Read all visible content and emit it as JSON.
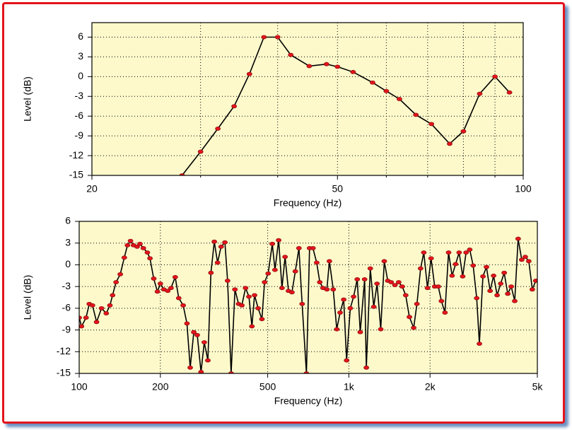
{
  "chart_data": [
    {
      "type": "line",
      "ylabel": "Level (dB)",
      "xlabel": "Frequency (Hz)",
      "log_x": true,
      "grid": true,
      "color": "#000000",
      "marker_color": "#e3141b",
      "xlim": [
        20,
        100
      ],
      "xticks": [
        20,
        50,
        100
      ],
      "xminor": [
        30,
        40,
        60,
        70,
        80,
        90
      ],
      "ylim": [
        -15,
        8.2
      ],
      "yticks": [
        6,
        3,
        0,
        -3,
        -6,
        -9,
        -12,
        -15
      ],
      "x": [
        28,
        30,
        32,
        34,
        36,
        38,
        40,
        42,
        45,
        48,
        50,
        53,
        57,
        60,
        63,
        67,
        71,
        76,
        80,
        85,
        90,
        95
      ],
      "values": [
        -15,
        -11.4,
        -7.9,
        -4.5,
        0.4,
        6,
        6,
        3.3,
        1.6,
        1.9,
        1.5,
        0.7,
        -0.9,
        -2.2,
        -3.4,
        -5.8,
        -7.2,
        -10.2,
        -8.3,
        -2.6,
        0,
        -2.4
      ]
    },
    {
      "type": "line",
      "ylabel": "Level (dB)",
      "xlabel": "Frequency (Hz)",
      "log_x": true,
      "grid": true,
      "color": "#000000",
      "marker_color": "#e3141b",
      "xlim": [
        100,
        5000
      ],
      "xticks": [
        100,
        200,
        500,
        {
          "value": 1000,
          "label": "1k"
        },
        {
          "value": 2000,
          "label": "2k"
        },
        {
          "value": 5000,
          "label": "5k"
        }
      ],
      "ylim": [
        -15,
        6
      ],
      "yticks": [
        6,
        3,
        0,
        -3,
        -6,
        -9,
        -12,
        -15
      ],
      "x": [
        100,
        102,
        106,
        109,
        112,
        116,
        121,
        126,
        130,
        133,
        137,
        142,
        147,
        151,
        155,
        159,
        164,
        168,
        173,
        179,
        183,
        189,
        195,
        200,
        206,
        213,
        219,
        227,
        234,
        243,
        251,
        258,
        266,
        274,
        283,
        291,
        300,
        308,
        317,
        326,
        336,
        347,
        355,
        366,
        378,
        390,
        401,
        414,
        426,
        437,
        447,
        461,
        476,
        487,
        502,
        520,
        532,
        549,
        565,
        580,
        597,
        615,
        633,
        653,
        671,
        696,
        715,
        736,
        760,
        780,
        802,
        829,
        847,
        875,
        902,
        928,
        957,
        981,
        1012,
        1041,
        1074,
        1102,
        1144,
        1161,
        1201,
        1237,
        1272,
        1313,
        1353,
        1394,
        1435,
        1482,
        1530,
        1577,
        1625,
        1677,
        1739,
        1788,
        1845,
        1896,
        1957,
        2018,
        2081,
        2146,
        2204,
        2272,
        2343,
        2414,
        2488,
        2564,
        2643,
        2721,
        2807,
        2890,
        2979,
        3048,
        3142,
        3238,
        3340,
        3441,
        3546,
        3656,
        3768,
        3883,
        4000,
        4122,
        4244,
        4376,
        4510,
        4647,
        4789,
        4933
      ],
      "values": [
        -7.3,
        -8.5,
        -7.3,
        -5.4,
        -5.6,
        -7.9,
        -6,
        -6.7,
        -5.6,
        -4.2,
        -2.4,
        -1.3,
        1,
        2.7,
        3.3,
        2.7,
        2.5,
        2.9,
        2.3,
        1.7,
        0.9,
        -1.9,
        -3.7,
        -2.6,
        -3.4,
        -3.6,
        -3.2,
        -1.7,
        -4.6,
        -5.6,
        -8.1,
        -14.2,
        -9.3,
        -9.7,
        -14.8,
        -10.7,
        -13.2,
        -1.1,
        3.2,
        0.3,
        2.5,
        3.1,
        -2.2,
        -15,
        -3.4,
        -5.4,
        -5.6,
        -3.2,
        -4.4,
        -8.5,
        -4.2,
        -6,
        -7.5,
        -2.4,
        -1.2,
        2.9,
        -0.7,
        3.4,
        -3.2,
        1.1,
        -3.6,
        -3.8,
        -0.9,
        2.3,
        -5.4,
        -15,
        2.3,
        2.3,
        0.3,
        -2.4,
        -3.2,
        -3.4,
        0.5,
        -3.4,
        -8.9,
        -6.6,
        -4.8,
        -13.2,
        -6,
        -4.4,
        -2,
        -9.3,
        -2,
        -14.2,
        -0.5,
        -5.8,
        -2.6,
        -8.9,
        0.5,
        -2.2,
        -2.4,
        -2.8,
        -2.4,
        -3,
        -4.2,
        -7.2,
        -8.7,
        -5.4,
        -0.5,
        1.7,
        -3.2,
        0.9,
        -3,
        -3,
        -5,
        -6.6,
        1.7,
        -1.5,
        0.1,
        1.7,
        -1.6,
        1.7,
        2.1,
        -0.1,
        -4.6,
        -10.9,
        -1.6,
        -0.3,
        -3.6,
        -1.5,
        -4.2,
        -2.6,
        -1.1,
        -4,
        -3,
        -5,
        3.6,
        0.7,
        1.1,
        0.5,
        -3.4,
        -2.2
      ]
    }
  ]
}
